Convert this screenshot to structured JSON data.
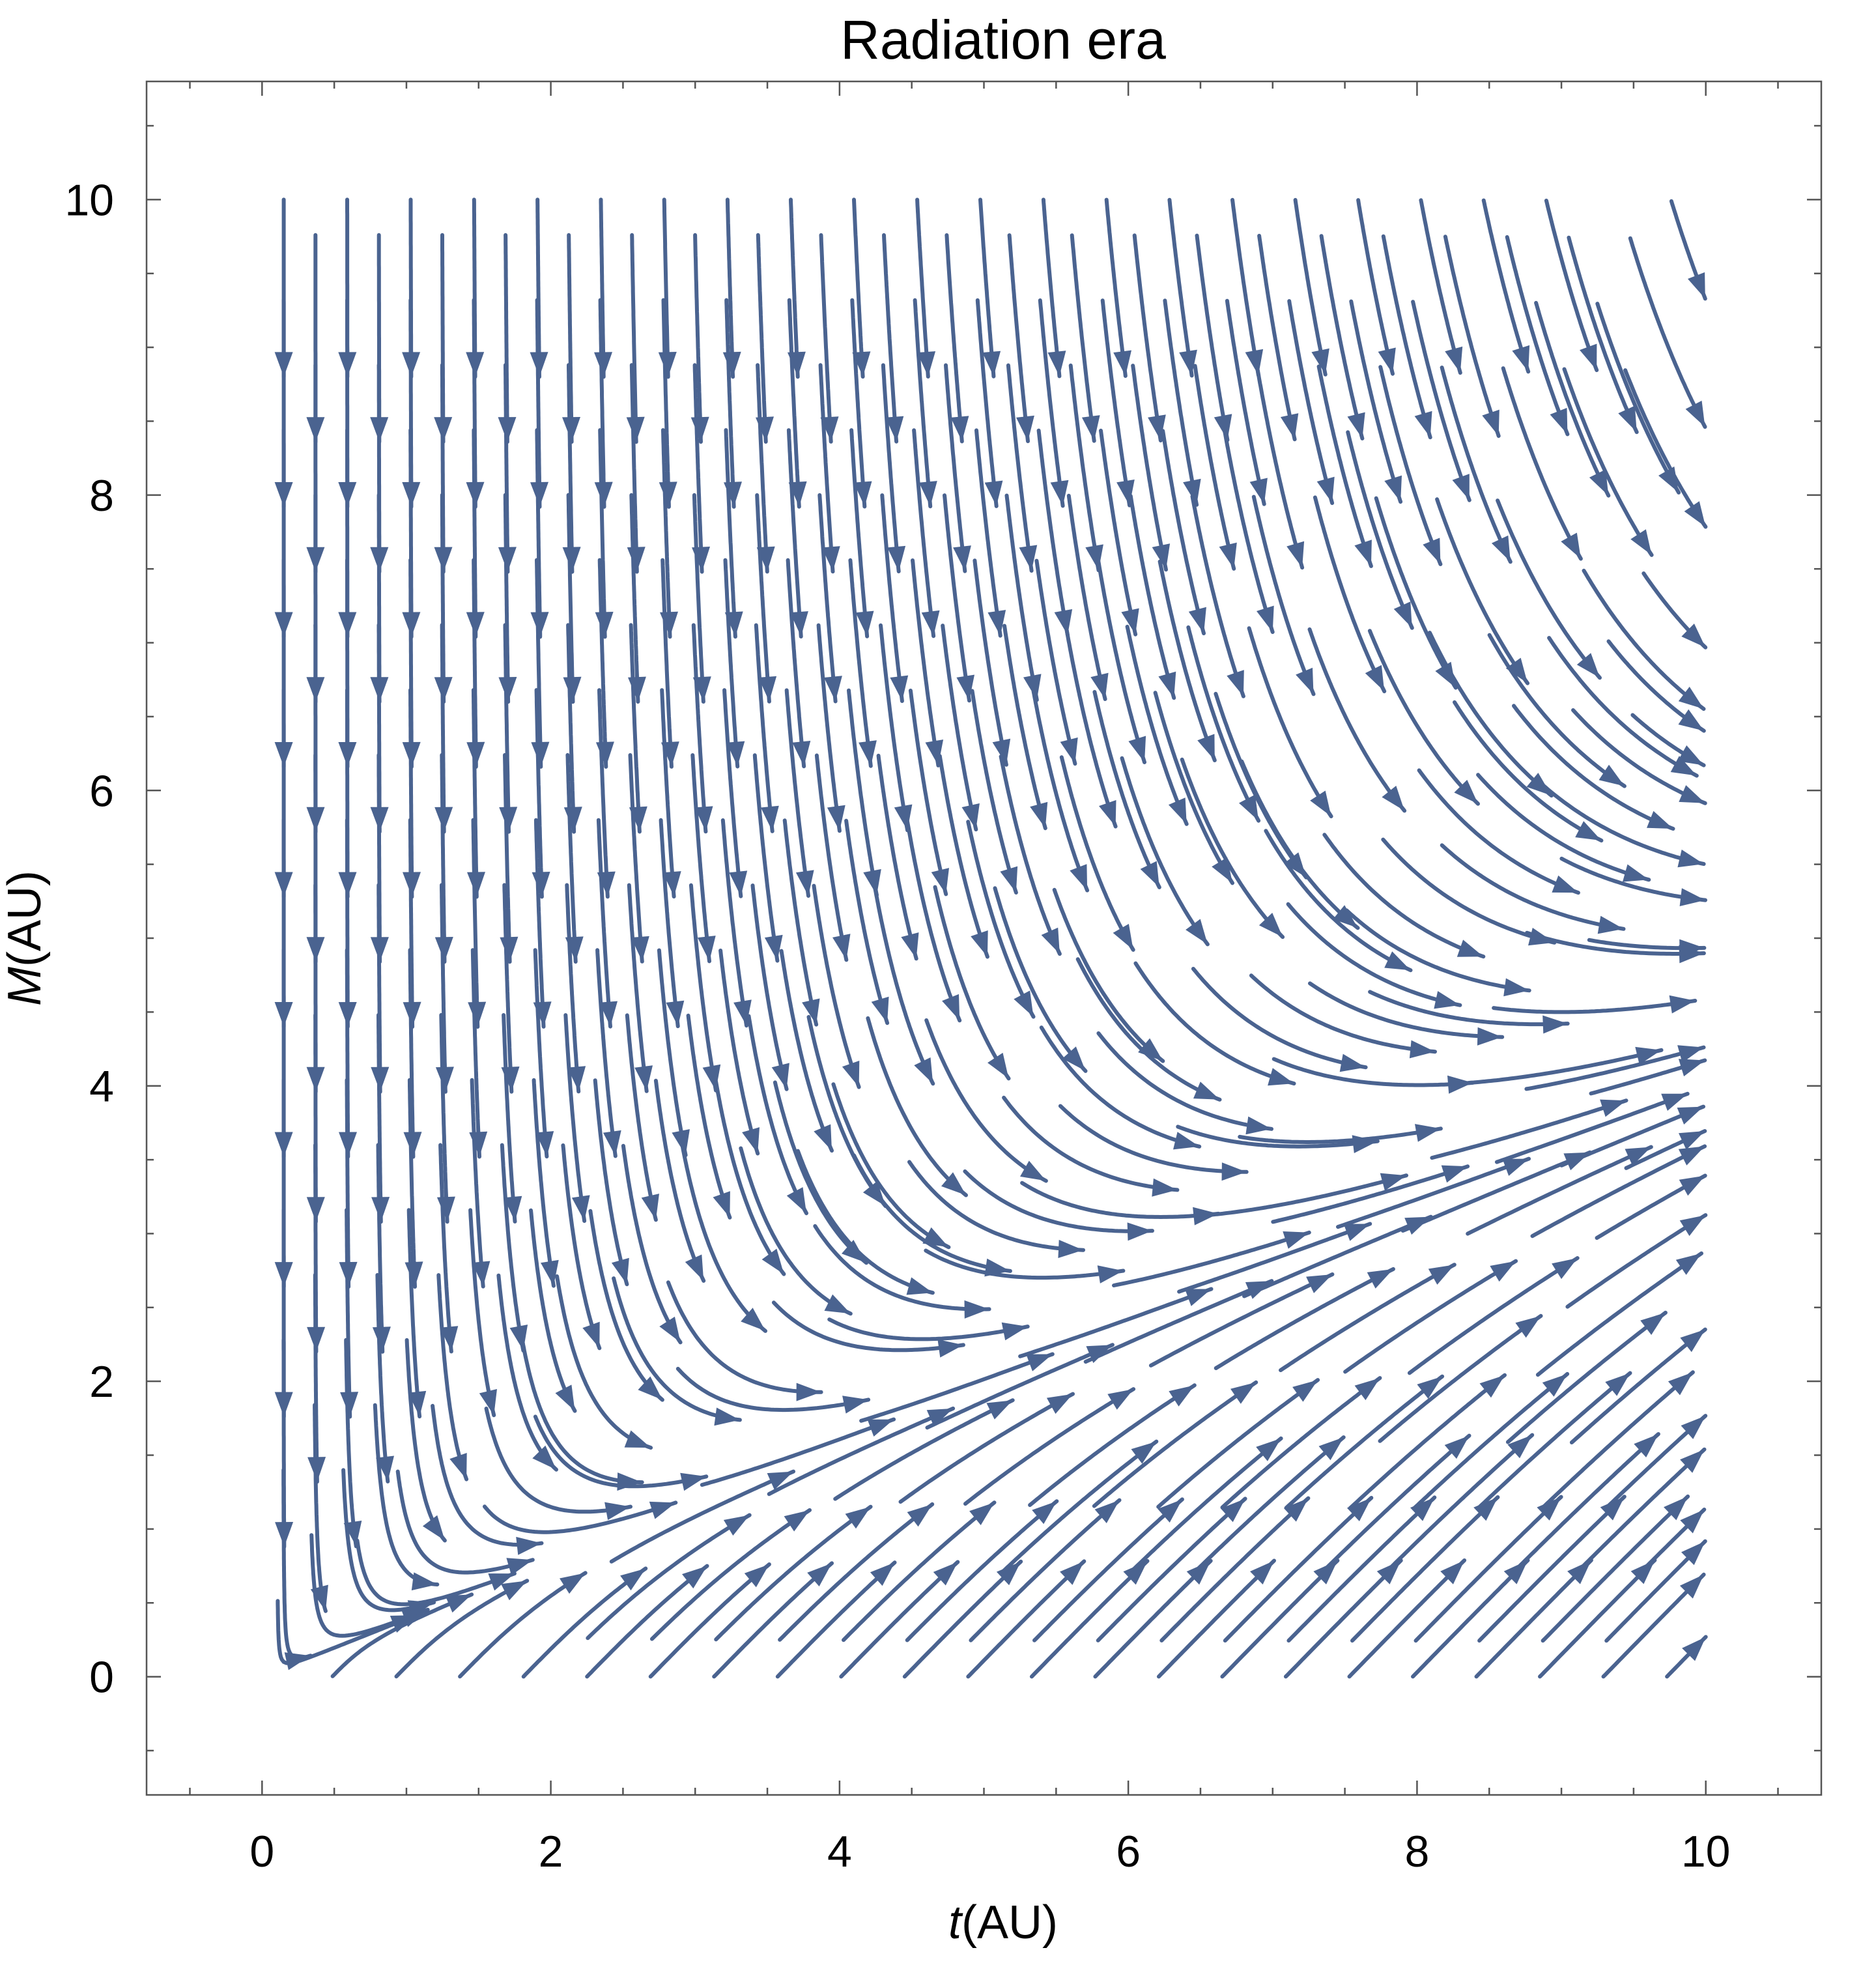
{
  "chart_data": {
    "type": "stream",
    "title": "Radiation era",
    "xlabel_var": "t",
    "xlabel_unit": "(AU)",
    "ylabel_var": "M",
    "ylabel_unit": "(AU)",
    "xlim": [
      -0.8,
      10.8
    ],
    "ylim": [
      -0.8,
      10.8
    ],
    "x_ticks": [
      0,
      2,
      4,
      6,
      8,
      10
    ],
    "y_ticks": [
      0,
      2,
      4,
      6,
      8,
      10
    ],
    "x_tick_labels": [
      "0",
      "2",
      "4",
      "6",
      "8",
      "10"
    ],
    "y_tick_labels": [
      "0",
      "2",
      "4",
      "6",
      "8",
      "10"
    ],
    "stream_region": {
      "t": [
        0,
        10
      ],
      "M": [
        0,
        10
      ]
    },
    "grid": false,
    "legend": "none",
    "stream_color": "#4a6390",
    "frame_color": "#555555",
    "series": [
      {
        "name": "",
        "flow": "dt = 1, dM = 1 - 4 M^2 / t^2 (normalized direction field)"
      }
    ]
  }
}
